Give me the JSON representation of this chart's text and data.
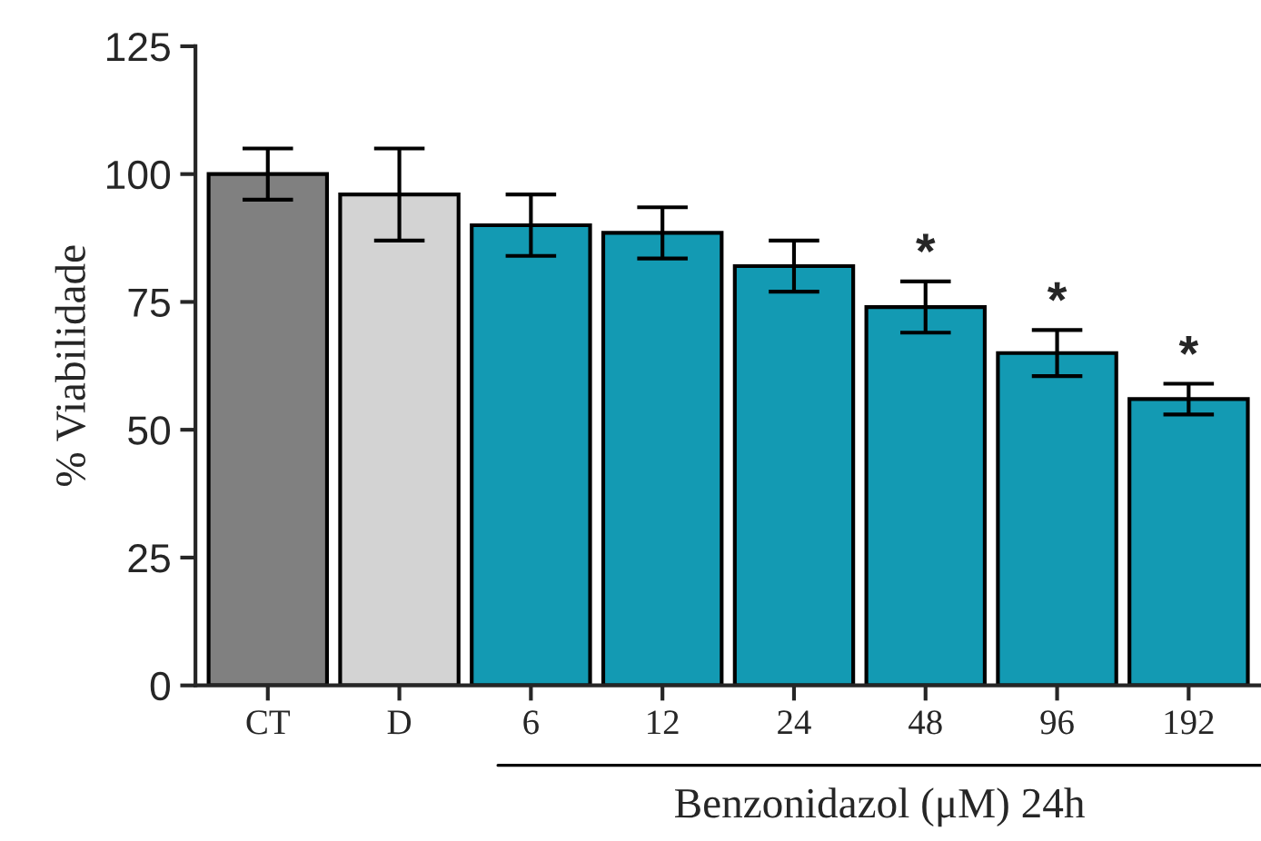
{
  "chart_data": {
    "type": "bar",
    "ylabel": "% Viabilidade",
    "xlabel": "Benzonidazol (μM) 24h",
    "categories": [
      "CT",
      "D",
      "6",
      "12",
      "24",
      "48",
      "96",
      "192"
    ],
    "values": [
      100,
      96,
      90,
      88.5,
      82,
      74,
      65,
      56
    ],
    "errors": [
      5,
      9,
      6,
      5,
      5,
      5,
      4.5,
      3
    ],
    "colors": [
      "#808080",
      "#d3d3d3",
      "#139ab3",
      "#139ab3",
      "#139ab3",
      "#139ab3",
      "#139ab3",
      "#139ab3"
    ],
    "ylim": [
      0,
      125
    ],
    "yticks": [
      0,
      25,
      50,
      75,
      100,
      125
    ],
    "grid": false,
    "annotations": [
      {
        "text": "*",
        "x": "48",
        "y": 79
      },
      {
        "text": "*",
        "x": "96",
        "y": 69.5
      },
      {
        "text": "*",
        "x": "192",
        "y": 59
      }
    ]
  }
}
